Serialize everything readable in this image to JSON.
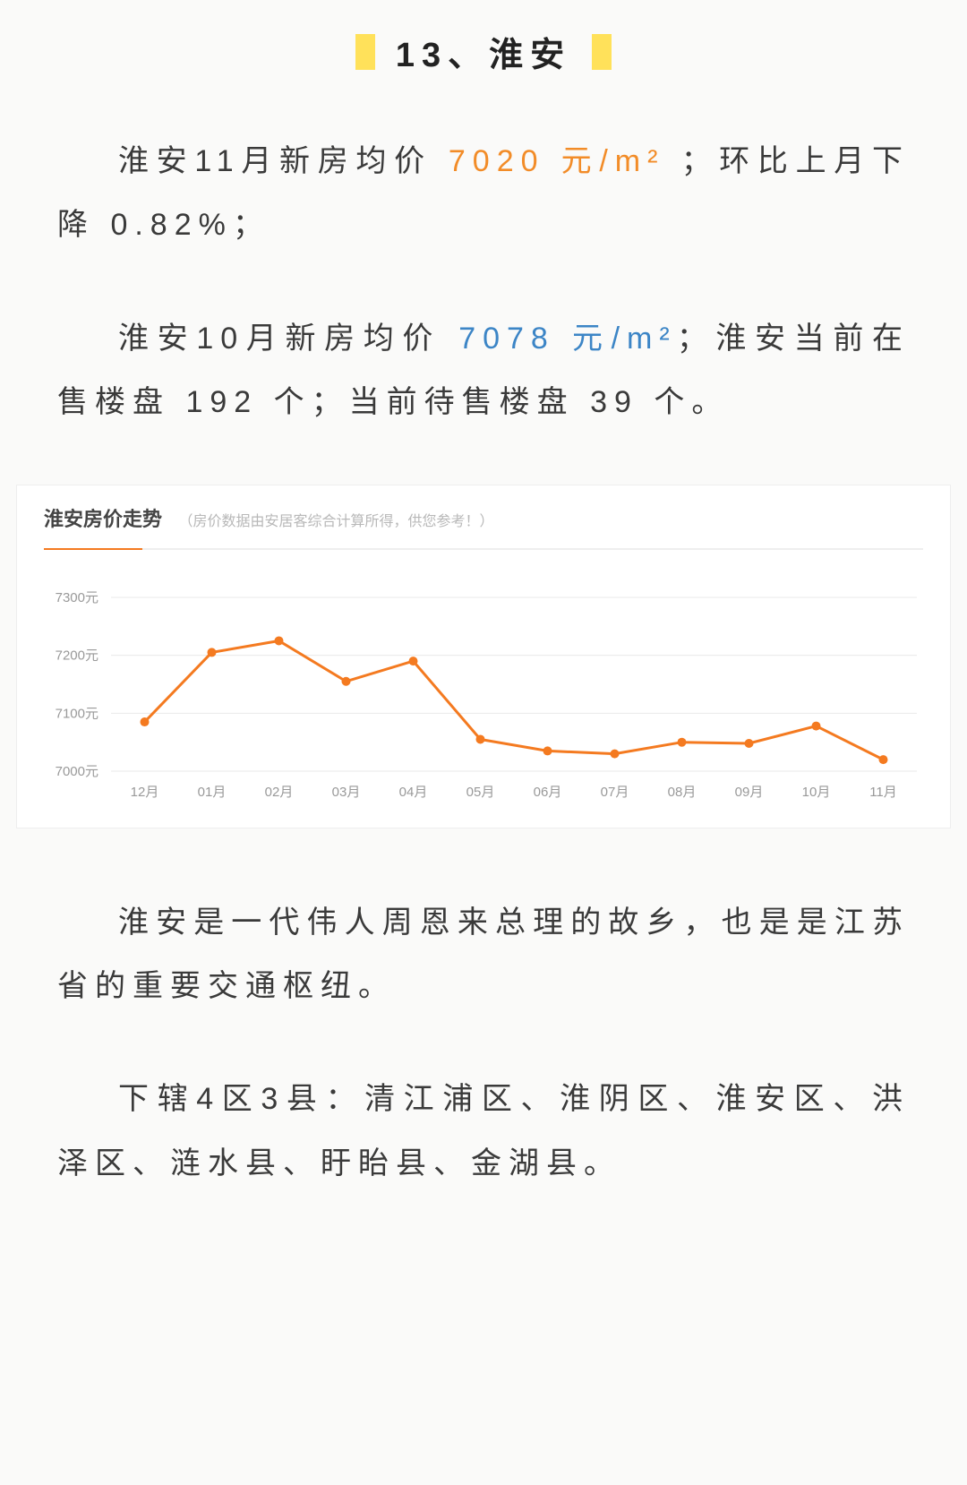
{
  "title": "13、淮安",
  "para1": {
    "pre": "淮安11月新房均价 ",
    "price": "7020 元/m²",
    "post": " ；环比上月下降 0.82%；"
  },
  "para2": {
    "pre": "淮安10月新房均价 ",
    "price": "7078 元/m²",
    "post": "；淮安当前在售楼盘 192 个；当前待售楼盘 39 个。"
  },
  "chart": {
    "title": "淮安房价走势",
    "subtitle": "（房价数据由安居客综合计算所得，供您参考！）",
    "type": "line",
    "ylabels": [
      "7300元",
      "7200元",
      "7100元",
      "7000元"
    ],
    "yvalues": [
      7300,
      7200,
      7100,
      7000
    ],
    "xlabels": [
      "12月",
      "01月",
      "02月",
      "03月",
      "04月",
      "05月",
      "06月",
      "07月",
      "08月",
      "09月",
      "10月",
      "11月"
    ],
    "values": [
      7085,
      7205,
      7225,
      7155,
      7190,
      7055,
      7035,
      7030,
      7050,
      7048,
      7078,
      7020
    ],
    "line_color": "#f47a20",
    "grid_color": "#eaeaea",
    "label_color": "#999999",
    "background": "#ffffff",
    "ylim": [
      6980,
      7320
    ],
    "marker_radius": 5,
    "line_width": 3
  },
  "para3": "淮安是一代伟人周恩来总理的故乡，也是是江苏省的重要交通枢纽。",
  "para4": "下辖4区3县：清江浦区、淮阴区、淮安区、洪泽区、涟水县、盱眙县、金湖县。"
}
